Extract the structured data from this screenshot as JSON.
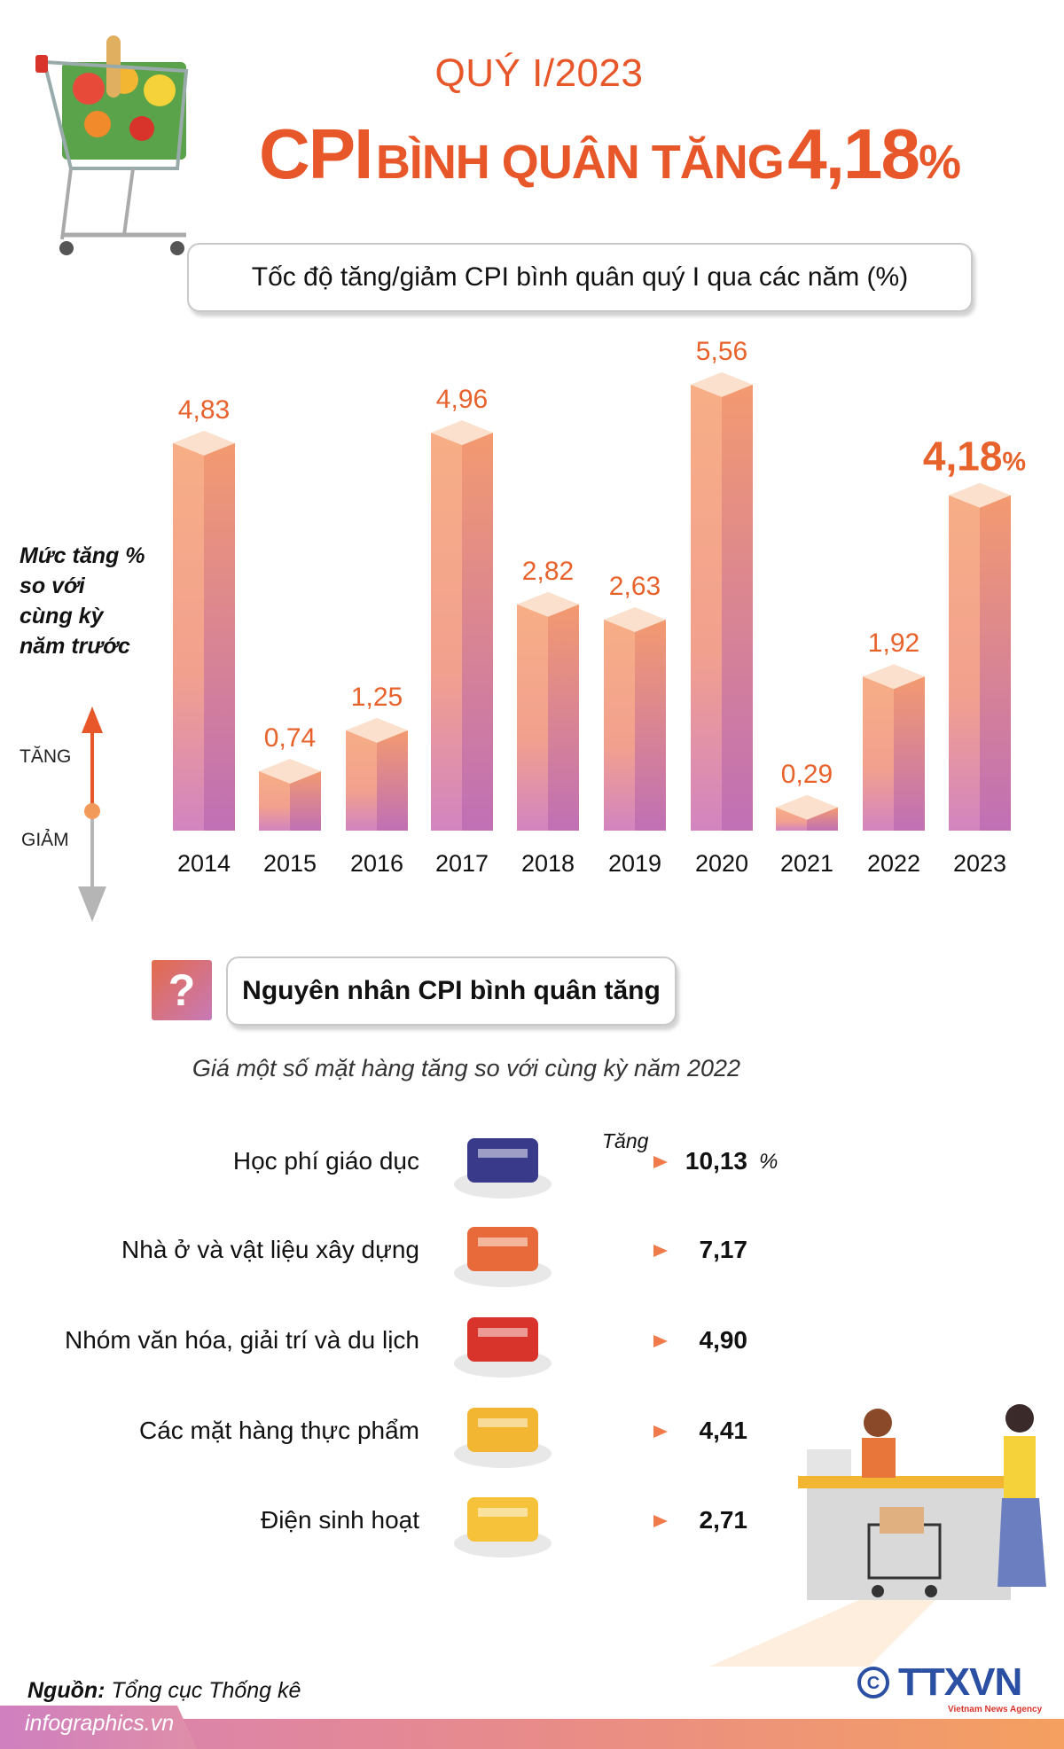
{
  "header": {
    "subtitle": "QUÝ I/2023",
    "title_part1": "CPI",
    "title_part2": "BÌNH QUÂN TĂNG",
    "title_part3": "4,18",
    "title_part4": "%"
  },
  "chart_data": {
    "type": "bar",
    "title": "Tốc độ tăng/giảm CPI bình quân quý I qua các năm (%)",
    "ylabel": "Mức tăng % so với cùng kỳ năm trước",
    "categories": [
      "2014",
      "2015",
      "2016",
      "2017",
      "2018",
      "2019",
      "2020",
      "2021",
      "2022",
      "2023"
    ],
    "values": [
      4.83,
      0.74,
      1.25,
      4.96,
      2.82,
      2.63,
      5.56,
      0.29,
      1.92,
      4.18
    ],
    "labels": [
      "4,83",
      "0,74",
      "1,25",
      "4,96",
      "2,82",
      "2,63",
      "5,56",
      "0,29",
      "1,92",
      "4,18"
    ],
    "highlight_suffix": "%",
    "ylim": [
      0,
      6
    ],
    "grid": false,
    "colors": {
      "bar_top": "#f7ae86",
      "bar_bottom": "#d284c0",
      "cap": "#fbe1cd",
      "label": "#e8622c"
    }
  },
  "legend": {
    "line1": "Mức tăng %",
    "line2": "so với",
    "line3": "cùng kỳ",
    "line4": "năm trước",
    "up": "TĂNG",
    "down": "GIẢM"
  },
  "causes": {
    "icon": "question-icon",
    "title": "Nguyên nhân CPI bình quân tăng",
    "note": "Giá một số mặt hàng tăng so với cùng kỳ năm 2022",
    "increase_label": "Tăng",
    "unit": "%",
    "items": [
      {
        "label": "Học phí giáo dục",
        "value": "10,13",
        "icon": "graduation-books-icon"
      },
      {
        "label": "Nhà ở và vật liệu xây dựng",
        "value": "7,17",
        "icon": "bricks-icon"
      },
      {
        "label": "Nhóm văn hóa, giải trí và du lịch",
        "value": "4,90",
        "icon": "popcorn-film-icon"
      },
      {
        "label": "Các mặt hàng thực phẩm",
        "value": "4,41",
        "icon": "food-plate-icon"
      },
      {
        "label": "Điện sinh hoạt",
        "value": "2,71",
        "icon": "bulb-plug-icon"
      }
    ]
  },
  "footer": {
    "source_label": "Nguồn:",
    "source": "Tổng cục Thống kê",
    "site": "infographics.vn",
    "logo": "TTXVN",
    "logo_sub": "Vietnam News Agency"
  },
  "colors": {
    "accent": "#e8572a",
    "logo_blue": "#2b4fa3"
  }
}
